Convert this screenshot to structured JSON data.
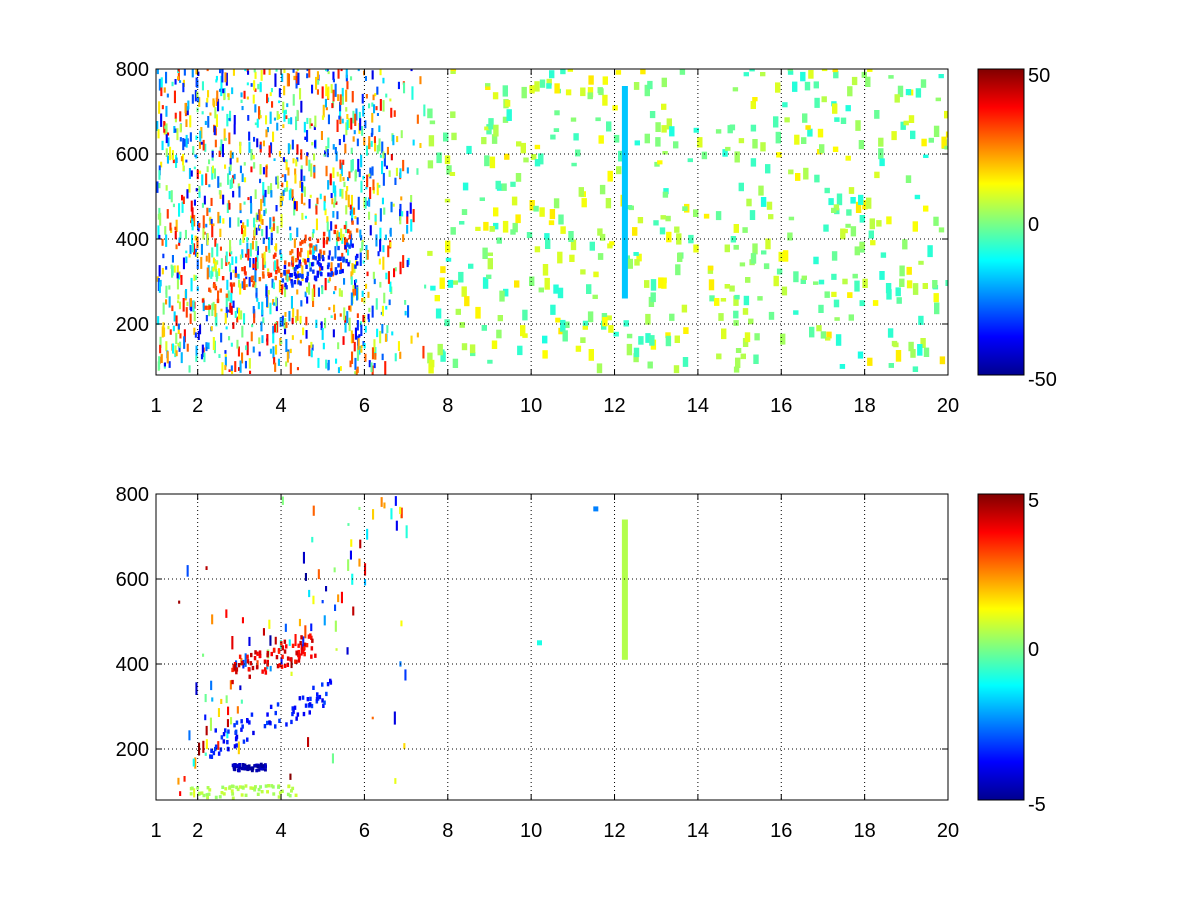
{
  "chart_data": [
    {
      "type": "heatmap",
      "title": "",
      "xlabel": "",
      "ylabel": "",
      "xlim": [
        1,
        20
      ],
      "ylim": [
        80,
        800
      ],
      "x_ticks": [
        1,
        2,
        4,
        6,
        8,
        10,
        12,
        14,
        16,
        18,
        20
      ],
      "y_ticks": [
        200,
        400,
        600,
        800
      ],
      "grid": true,
      "colormap": "jet",
      "colorbar": {
        "clim": [
          -50,
          50
        ],
        "ticks": [
          50,
          0,
          -50
        ]
      },
      "features": [
        {
          "shape": "dense_cloud",
          "x_range": [
            1,
            7.5
          ],
          "y_range": [
            80,
            800
          ],
          "value_range": [
            -40,
            40
          ]
        },
        {
          "shape": "ridge",
          "x_start": 2,
          "y_start": 250,
          "x_end": 5.8,
          "y_end": 420,
          "value": 35
        },
        {
          "shape": "ridge",
          "x_start": 4,
          "y_start": 300,
          "x_end": 5.8,
          "y_end": 360,
          "value": -40
        },
        {
          "shape": "sparse_speckle",
          "x_range": [
            7.5,
            20
          ],
          "y_range": [
            80,
            800
          ],
          "value_range": [
            -10,
            15
          ]
        },
        {
          "shape": "vertical_line",
          "x": 12.25,
          "y_range": [
            260,
            760
          ],
          "value": -18
        }
      ]
    },
    {
      "type": "heatmap",
      "title": "",
      "xlabel": "",
      "ylabel": "",
      "xlim": [
        1,
        20
      ],
      "ylim": [
        80,
        800
      ],
      "x_ticks": [
        1,
        2,
        4,
        6,
        8,
        10,
        12,
        14,
        16,
        18,
        20
      ],
      "y_ticks": [
        200,
        400,
        600,
        800
      ],
      "grid": true,
      "colormap": "jet",
      "colorbar": {
        "clim": [
          -5,
          5
        ],
        "ticks": [
          5,
          0,
          -5
        ]
      },
      "features": [
        {
          "shape": "sparse_cloud",
          "x_range": [
            1.5,
            7
          ],
          "y_range": [
            80,
            780
          ],
          "value_range": [
            -5,
            5
          ]
        },
        {
          "shape": "ridge",
          "x_start": 2.8,
          "y_start": 380,
          "x_end": 4.8,
          "y_end": 440,
          "value": 4.5
        },
        {
          "shape": "ridge",
          "x_start": 2.2,
          "y_start": 200,
          "x_end": 5.2,
          "y_end": 330,
          "value": -4
        },
        {
          "shape": "band",
          "x_range": [
            1.8,
            4.5
          ],
          "y_range": [
            80,
            110
          ],
          "value": 0.5
        },
        {
          "shape": "band",
          "x_range": [
            2.8,
            3.6
          ],
          "y_range": [
            145,
            160
          ],
          "value": -4.5
        },
        {
          "shape": "vertical_line",
          "x": 12.25,
          "y_range": [
            410,
            740
          ],
          "value": 0.5
        },
        {
          "shape": "point",
          "x": 11.55,
          "y": 765,
          "value": -2.5
        },
        {
          "shape": "point",
          "x": 10.2,
          "y": 450,
          "value": -1
        }
      ]
    }
  ]
}
